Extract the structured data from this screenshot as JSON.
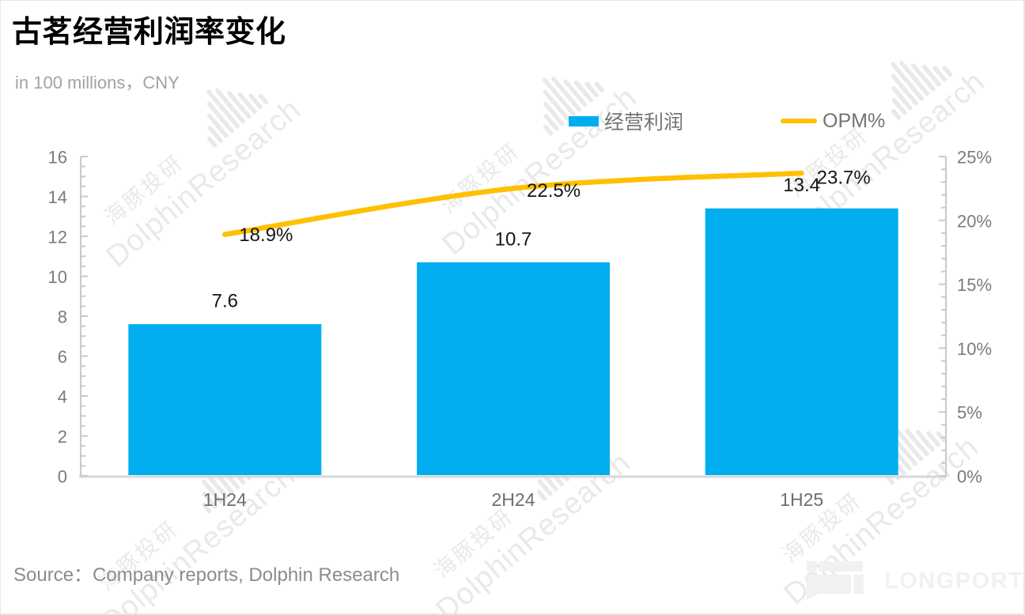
{
  "header": {
    "title": "古茗经营利润率变化",
    "subtitle": "in 100 millions，CNY"
  },
  "legend": {
    "bar_label": "经营利润",
    "line_label": "OPM%"
  },
  "chart_data": {
    "type": "bar",
    "subtype": "bar+line combo, dual axis",
    "title": "古茗经营利润率变化",
    "categories": [
      "1H24",
      "2H24",
      "1H25"
    ],
    "series": [
      {
        "name": "经营利润",
        "type": "bar",
        "axis": "left",
        "values": [
          7.6,
          10.7,
          13.4
        ],
        "labels": [
          "7.6",
          "10.7",
          "13.4"
        ],
        "color": "#00AEEF"
      },
      {
        "name": "OPM%",
        "type": "line",
        "axis": "right",
        "values": [
          18.9,
          22.5,
          23.7
        ],
        "labels": [
          "18.9%",
          "22.5%",
          "23.7%"
        ],
        "color": "#FFC000"
      }
    ],
    "left_axis": {
      "min": 0,
      "max": 16,
      "major_step": 2,
      "minor_step": 0.5,
      "tick_labels": [
        "0",
        "2",
        "4",
        "6",
        "8",
        "10",
        "12",
        "14",
        "16"
      ]
    },
    "right_axis": {
      "min": 0,
      "max": 25,
      "major_step": 5,
      "minor_step": 1,
      "tick_labels": [
        "0%",
        "5%",
        "10%",
        "15%",
        "20%",
        "25%"
      ]
    },
    "grid": false,
    "legend_position": "top",
    "smooth_line": true
  },
  "source": {
    "text": "Source：Company reports, Dolphin Research"
  },
  "watermark": {
    "cn": "海豚投研",
    "en": "DolphinResearch"
  },
  "brand": {
    "logo_text": "LONGPORT"
  },
  "colors": {
    "bar": "#00AEEF",
    "line": "#FFC000",
    "axis_line": "#c9c9c9",
    "axis_bottom": "#d8d8d8",
    "tick_label": "#7b7b7b",
    "category_label": "#6e6e6e",
    "data_label": "#151515",
    "legend_label": "#737373",
    "watermark": "#e9e9e9",
    "brand": "#f1f1f1",
    "title": "#000000",
    "subtitle": "#a3a3a3",
    "source": "#8c8c8c"
  }
}
